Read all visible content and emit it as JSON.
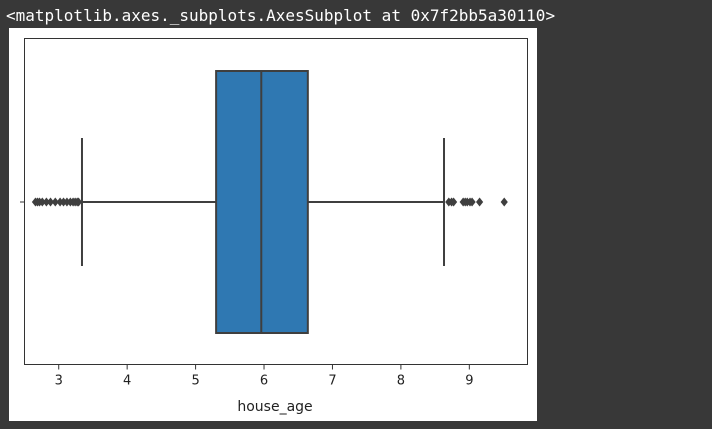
{
  "output": {
    "repr_text": "<matplotlib.axes._subplots.AxesSubplot at 0x7f2bb5a30110>"
  },
  "chart_data": {
    "type": "box",
    "orientation": "horizontal",
    "title": "",
    "xlabel": "house_age",
    "ylabel": "",
    "xlim": [
      2.5,
      9.85
    ],
    "x_ticks": [
      3,
      4,
      5,
      6,
      7,
      8,
      9
    ],
    "grid": false,
    "box": {
      "q1": 5.3,
      "median": 5.96,
      "q3": 6.64,
      "whisker_low": 3.34,
      "whisker_high": 8.63
    },
    "outliers": [
      2.66,
      2.69,
      2.72,
      2.76,
      2.82,
      2.88,
      2.95,
      3.02,
      3.07,
      3.12,
      3.17,
      3.21,
      3.24,
      3.27,
      3.29,
      8.7,
      8.74,
      8.77,
      8.91,
      8.94,
      8.97,
      9.01,
      9.04,
      9.15,
      9.51
    ],
    "colors": {
      "box_fill": "#2f78b2",
      "box_line": "#3f3f3f",
      "outlier": "#3f3f3f"
    }
  }
}
